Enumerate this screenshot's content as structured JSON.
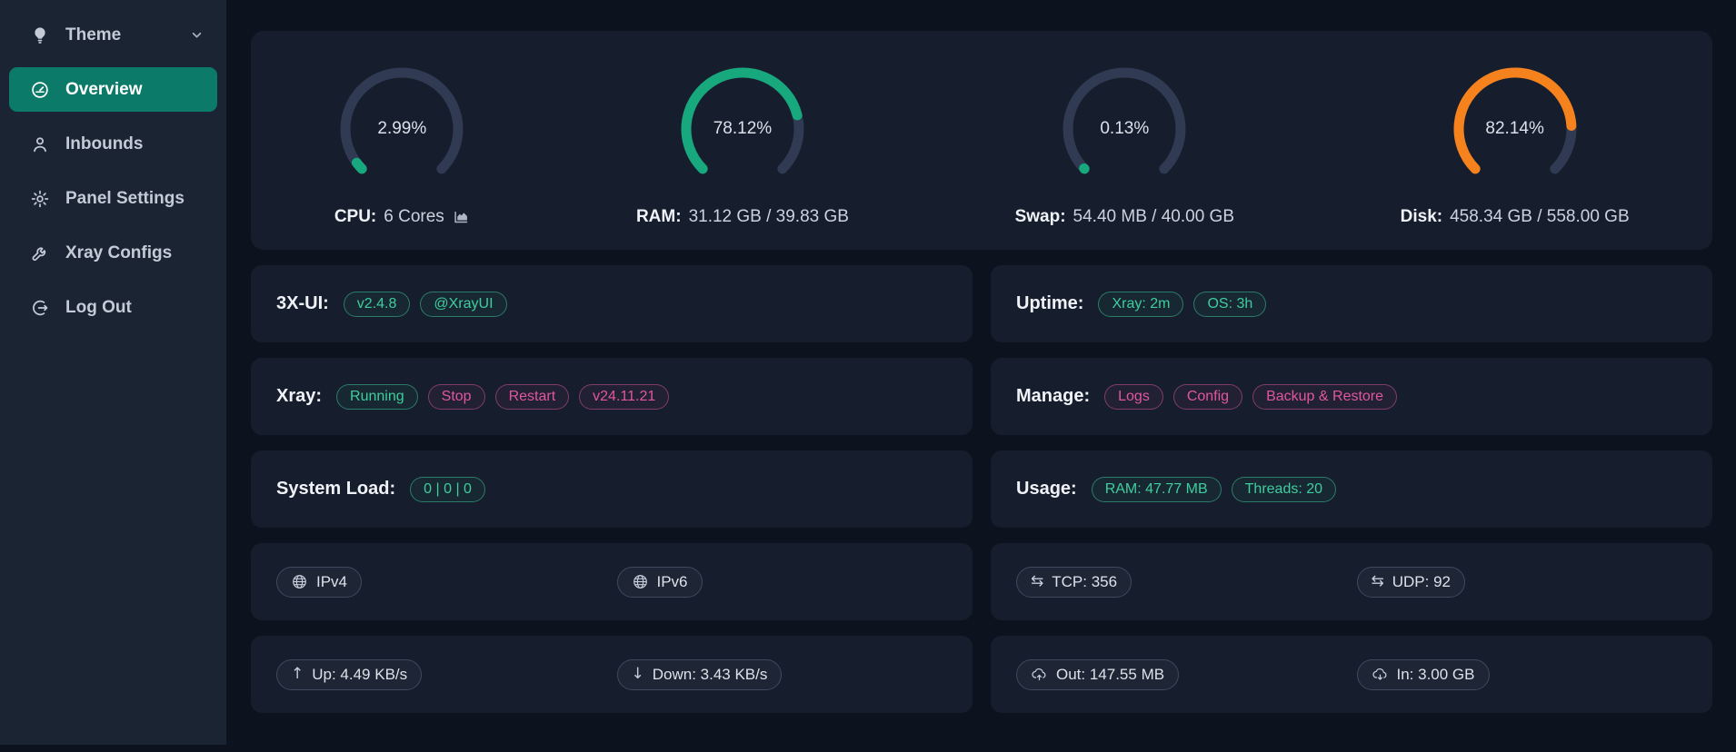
{
  "colors": {
    "page_bg": "#0c121e",
    "card_bg": "#161e2d",
    "sidebar_bg": "#1a2433",
    "sidebar_active_bg": "#0b7a68",
    "badge_green": "#3fcd9d",
    "badge_pink": "#e0579f",
    "gauge_track": "#303a52",
    "accent_green": "#17a87e",
    "accent_orange": "#f5821d"
  },
  "sidebar": {
    "items": [
      {
        "label": "Theme",
        "icon": "bulb-icon",
        "has_chevron": true
      },
      {
        "label": "Overview",
        "icon": "dashboard-icon",
        "active": true
      },
      {
        "label": "Inbounds",
        "icon": "user-icon"
      },
      {
        "label": "Panel Settings",
        "icon": "gear-icon"
      },
      {
        "label": "Xray Configs",
        "icon": "wrench-icon"
      },
      {
        "label": "Log Out",
        "icon": "logout-icon"
      }
    ]
  },
  "gauges": [
    {
      "value": "2.99%",
      "percent": 2.99,
      "color": "#17a87e",
      "label": "CPU:",
      "detail": "6 Cores",
      "has_chart_icon": true
    },
    {
      "value": "78.12%",
      "percent": 78.12,
      "color": "#17a87e",
      "label": "RAM:",
      "detail": "31.12 GB / 39.83 GB"
    },
    {
      "value": "0.13%",
      "percent": 0.13,
      "color": "#17a87e",
      "label": "Swap:",
      "detail": "54.40 MB / 40.00 GB"
    },
    {
      "value": "82.14%",
      "percent": 82.14,
      "color": "#f5821d",
      "label": "Disk:",
      "detail": "458.34 GB / 558.00 GB"
    }
  ],
  "rows": {
    "xui": {
      "label": "3X-UI:",
      "badges": [
        {
          "text": "v2.4.8"
        },
        {
          "text": "@XrayUI"
        }
      ]
    },
    "uptime": {
      "label": "Uptime:",
      "badges": [
        {
          "text": "Xray: 2m"
        },
        {
          "text": "OS: 3h"
        }
      ]
    },
    "xray": {
      "label": "Xray:",
      "badges": [
        {
          "text": "Running"
        },
        {
          "text": "Stop"
        },
        {
          "text": "Restart"
        },
        {
          "text": "v24.11.21"
        }
      ]
    },
    "manage": {
      "label": "Manage:",
      "badges": [
        {
          "text": "Logs"
        },
        {
          "text": "Config"
        },
        {
          "text": "Backup & Restore"
        }
      ]
    },
    "system_load": {
      "label": "System Load:",
      "badges": [
        {
          "text": "0 | 0 | 0"
        }
      ]
    },
    "usage": {
      "label": "Usage:",
      "badges": [
        {
          "text": "RAM: 47.77 MB"
        },
        {
          "text": "Threads: 20"
        }
      ]
    },
    "ip": {
      "tags": [
        {
          "icon": "globe-icon",
          "text": "IPv4"
        },
        {
          "icon": "globe-icon",
          "text": "IPv6"
        }
      ]
    },
    "connections": {
      "tags": [
        {
          "icon": "swap-arrows-icon",
          "text": "TCP: 356"
        },
        {
          "icon": "swap-arrows-icon",
          "text": "UDP: 92"
        }
      ]
    },
    "speed": {
      "tags": [
        {
          "icon": "arrow-up-icon",
          "text": "Up: 4.49 KB/s"
        },
        {
          "icon": "arrow-down-icon",
          "text": "Down: 3.43 KB/s"
        }
      ]
    },
    "traffic": {
      "tags": [
        {
          "icon": "cloud-upload-icon",
          "text": "Out: 147.55 MB"
        },
        {
          "icon": "cloud-download-icon",
          "text": "In: 3.00 GB"
        }
      ]
    }
  },
  "glyphs": {
    "swap_arrows": "⇆",
    "arrow_up": "↑",
    "arrow_down": "↓"
  }
}
